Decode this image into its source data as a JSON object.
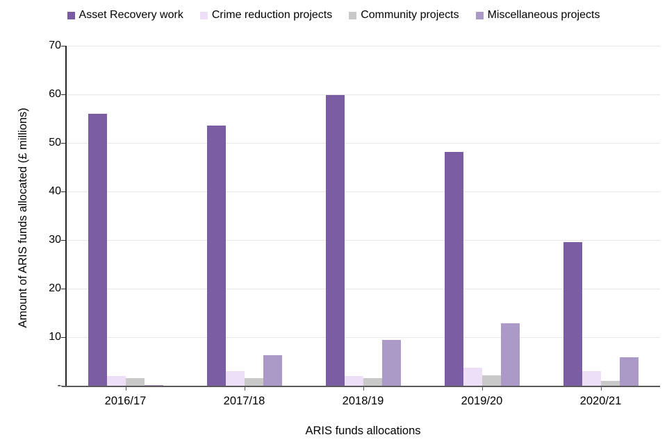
{
  "legend": {
    "items": [
      {
        "label": "Asset Recovery work",
        "color": "#7A5DA3"
      },
      {
        "label": "Crime reduction projects",
        "color": "#EEDFF8"
      },
      {
        "label": "Community projects",
        "color": "#C9C9C9"
      },
      {
        "label": "Miscellaneous projects",
        "color": "#AB99C8"
      }
    ]
  },
  "chart_data": {
    "type": "bar",
    "title": "",
    "xlabel": "ARIS funds allocations",
    "ylabel": "Amount of ARIS funds allocated (£ millions)",
    "categories": [
      "2016/17",
      "2017/18",
      "2018/19",
      "2019/20",
      "2020/21"
    ],
    "series": [
      {
        "name": "Asset Recovery work",
        "color": "#7A5DA3",
        "values": [
          56.0,
          53.5,
          59.9,
          48.2,
          29.5
        ]
      },
      {
        "name": "Crime reduction projects",
        "color": "#EEDFF8",
        "values": [
          2.0,
          3.0,
          2.0,
          3.7,
          3.0
        ]
      },
      {
        "name": "Community projects",
        "color": "#C9C9C9",
        "values": [
          1.5,
          1.6,
          1.6,
          2.1,
          1.0
        ]
      },
      {
        "name": "Miscellaneous projects",
        "color": "#AB99C8",
        "values": [
          0.2,
          6.3,
          9.4,
          12.9,
          5.8
        ]
      }
    ],
    "ylim": [
      0,
      70
    ],
    "ytick_interval": 10,
    "ytick_labels": [
      "-",
      "10",
      "20",
      "30",
      "40",
      "50",
      "60",
      "70"
    ],
    "grid": true,
    "legend_position": "top"
  }
}
